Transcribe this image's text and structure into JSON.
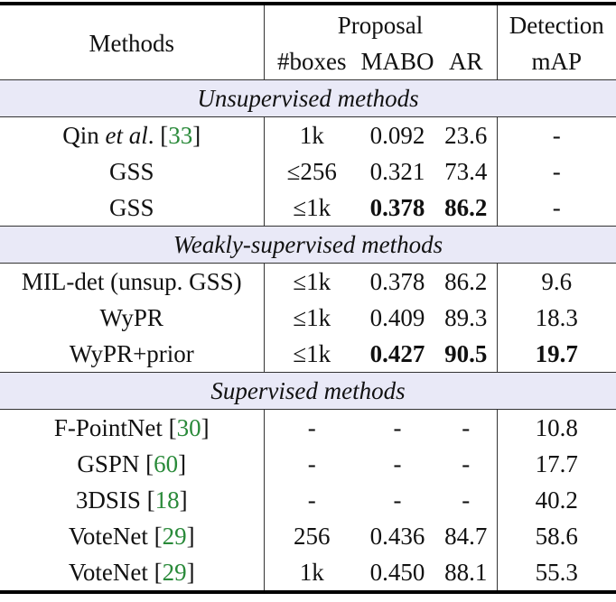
{
  "header": {
    "methods": "Methods",
    "proposal": "Proposal",
    "detection": "Detection",
    "boxes": "#boxes",
    "mabo": "MABO",
    "ar": "AR",
    "map": "mAP"
  },
  "colors": {
    "section_bg": "#e9e9f7",
    "citation": "#2a8a3a"
  },
  "sections": [
    {
      "title": "Unsupervised methods",
      "rows": [
        {
          "method": "Qin ",
          "method_it": "et al",
          "method_post": ". [",
          "ref": "33",
          "close": "]",
          "boxes": "1k",
          "mabo": "0.092",
          "ar": "23.6",
          "map": "-"
        },
        {
          "method": "GSS",
          "boxes": "≤256",
          "mabo": "0.321",
          "ar": "73.4",
          "map": "-"
        },
        {
          "method": "GSS",
          "boxes": "≤1k",
          "mabo": "0.378",
          "ar": "86.2",
          "map": "-",
          "bold": [
            "mabo",
            "ar"
          ]
        }
      ]
    },
    {
      "title": "Weakly-supervised methods",
      "rows": [
        {
          "method": "MIL-det (unsup. GSS)",
          "boxes": "≤1k",
          "mabo": "0.378",
          "ar": "86.2",
          "map": "9.6"
        },
        {
          "method": "WyPR",
          "boxes": "≤1k",
          "mabo": "0.409",
          "ar": "89.3",
          "map": "18.3"
        },
        {
          "method": "WyPR+prior",
          "boxes": "≤1k",
          "mabo": "0.427",
          "ar": "90.5",
          "map": "19.7",
          "bold": [
            "mabo",
            "ar",
            "map"
          ]
        }
      ]
    },
    {
      "title": "Supervised methods",
      "rows": [
        {
          "method": "F-PointNet [",
          "ref": "30",
          "close": "]",
          "boxes": "-",
          "mabo": "-",
          "ar": "-",
          "map": "10.8"
        },
        {
          "method": "GSPN [",
          "ref": "60",
          "close": "]",
          "boxes": "-",
          "mabo": "-",
          "ar": "-",
          "map": "17.7"
        },
        {
          "method": "3DSIS [",
          "ref": "18",
          "close": "]",
          "boxes": "-",
          "mabo": "-",
          "ar": "-",
          "map": "40.2"
        },
        {
          "method": "VoteNet [",
          "ref": "29",
          "close": "]",
          "boxes": "256",
          "mabo": "0.436",
          "ar": "84.7",
          "map": "58.6"
        },
        {
          "method": "VoteNet [",
          "ref": "29",
          "close": "]",
          "boxes": "1k",
          "mabo": "0.450",
          "ar": "88.1",
          "map": "55.3"
        }
      ]
    }
  ]
}
